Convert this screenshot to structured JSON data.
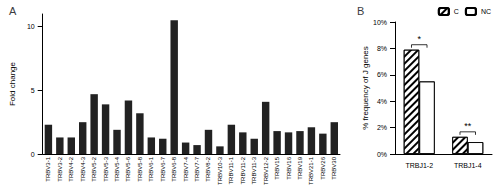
{
  "chart_data": [
    {
      "type": "bar",
      "title": "A",
      "y_label": "Fold change",
      "categories": [
        "TRBV3-1",
        "TRBV3-2",
        "TRBV4-2",
        "TRBV4-3",
        "TRBV5-2",
        "TRBV5-3",
        "TRBV5-4",
        "TRBV5-6",
        "TRBV5-8",
        "TRBV6-1",
        "TRBV6-7",
        "TRBV6-8",
        "TRBV7-4",
        "TRBV7-7",
        "TRBV8-2",
        "TRBV10-3",
        "TRBV11-1",
        "TRBV11-2",
        "TRBV11-3",
        "TRBV12-2",
        "TRBV15",
        "TRBV16",
        "TRBV19",
        "TRBV21-1",
        "TRBV26",
        "TRBV30"
      ],
      "values": [
        2.3,
        1.3,
        1.3,
        2.5,
        4.7,
        3.9,
        1.9,
        4.2,
        3.2,
        1.3,
        1.2,
        10.5,
        0.9,
        0.7,
        1.9,
        0.6,
        2.3,
        1.7,
        1.2,
        4.1,
        1.8,
        1.7,
        1.8,
        2.1,
        1.6,
        2.5
      ],
      "color": "#222222",
      "ylim": [
        0,
        11
      ],
      "yticks": [
        0,
        5,
        10
      ],
      "grid": false
    },
    {
      "type": "bar",
      "title": "B",
      "y_label": "% frequency of J genes",
      "categories": [
        "TRBJ1-2",
        "TRBJ1-4"
      ],
      "series": [
        {
          "name": "C",
          "color": "#ffffff",
          "values": [
            7.9,
            1.3
          ]
        },
        {
          "name": "NC",
          "color": "#ffffff",
          "values": [
            5.5,
            0.9
          ]
        }
      ],
      "annotations": [
        {
          "category": "TRBJ1-2",
          "text": "*"
        },
        {
          "category": "TRBJ1-4",
          "text": "**"
        }
      ],
      "ylim": [
        0,
        10
      ],
      "yticks": [
        {
          "value": 0,
          "label": "0%"
        },
        {
          "value": 2,
          "label": "2%"
        },
        {
          "value": 4,
          "label": "4%"
        },
        {
          "value": 6,
          "label": "6%"
        },
        {
          "value": 8,
          "label": "8%"
        },
        {
          "value": 10,
          "label": "10%"
        }
      ],
      "legend": "top-right",
      "grid": false
    }
  ]
}
